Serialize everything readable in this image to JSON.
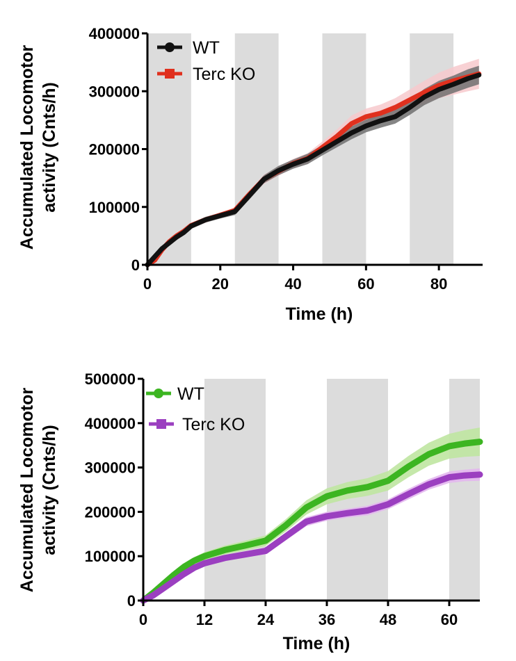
{
  "chart_data": [
    {
      "type": "line",
      "title": "",
      "xlabel": "Time (h)",
      "ylabel_line1": "Accumulated Locomotor",
      "ylabel_line2": "activity (Cnts/h)",
      "xlim": [
        0,
        92
      ],
      "ylim": [
        0,
        400000
      ],
      "xticks": [
        0,
        20,
        40,
        60,
        80
      ],
      "yticks": [
        0,
        100000,
        200000,
        300000,
        400000
      ],
      "dark_bands": [
        [
          0,
          12
        ],
        [
          24,
          36
        ],
        [
          48,
          60
        ],
        [
          72,
          84
        ]
      ],
      "band_color": "#dcdcdc",
      "series": [
        {
          "name": "Terc KO",
          "color": "#e0301e",
          "band_color": "#f7c9cc",
          "marker": "square",
          "x": [
            0,
            2,
            4,
            6,
            8,
            10,
            12,
            16,
            20,
            24,
            28,
            32,
            36,
            40,
            44,
            48,
            52,
            56,
            60,
            64,
            68,
            72,
            76,
            80,
            84,
            88,
            91
          ],
          "y": [
            0,
            8000,
            26000,
            40000,
            50000,
            58000,
            68000,
            78000,
            86000,
            94000,
            122000,
            148000,
            162000,
            175000,
            184000,
            203000,
            222000,
            244000,
            256000,
            262000,
            272000,
            285000,
            298000,
            310000,
            318000,
            325000,
            330000
          ],
          "err": [
            2000,
            3000,
            4000,
            4000,
            4000,
            4000,
            4000,
            4000,
            4000,
            5000,
            6000,
            8000,
            8000,
            8000,
            9000,
            10000,
            12000,
            14000,
            14000,
            15000,
            16000,
            18000,
            20000,
            22000,
            24000,
            25000,
            26000
          ]
        },
        {
          "name": "WT",
          "color": "#111111",
          "band_color": "#707070",
          "marker": "circle",
          "x": [
            0,
            2,
            4,
            6,
            8,
            10,
            12,
            16,
            20,
            24,
            28,
            32,
            36,
            40,
            44,
            48,
            52,
            56,
            60,
            64,
            68,
            72,
            76,
            80,
            84,
            88,
            91
          ],
          "y": [
            0,
            14000,
            28000,
            38000,
            48000,
            56000,
            67000,
            78000,
            85000,
            92000,
            120000,
            148000,
            163000,
            174000,
            183000,
            198000,
            213000,
            228000,
            240000,
            249000,
            256000,
            272000,
            290000,
            303000,
            312000,
            322000,
            328000
          ],
          "err": [
            2000,
            3000,
            4000,
            4000,
            5000,
            5000,
            5000,
            5000,
            5000,
            6000,
            7000,
            7000,
            8000,
            8000,
            9000,
            9000,
            10000,
            11000,
            11000,
            12000,
            12000,
            13000,
            14000,
            15000,
            15000,
            16000,
            16000
          ]
        }
      ],
      "legend": {
        "position": "top-left",
        "entries": [
          "WT",
          "Terc KO"
        ]
      }
    },
    {
      "type": "line",
      "title": "",
      "xlabel": "Time (h)",
      "ylabel_line1": "Accumulated Locomotor",
      "ylabel_line2": "activity (Cnts/h)",
      "xlim": [
        0,
        66
      ],
      "ylim": [
        0,
        500000
      ],
      "xticks": [
        0,
        12,
        24,
        36,
        48,
        60
      ],
      "yticks": [
        0,
        100000,
        200000,
        300000,
        400000,
        500000
      ],
      "dark_bands": [
        [
          12,
          24
        ],
        [
          36,
          48
        ],
        [
          60,
          66
        ]
      ],
      "band_color": "#dcdcdc",
      "series": [
        {
          "name": "WT",
          "color": "#3cb521",
          "band_color": "#bfe6a1",
          "marker": "circle",
          "x": [
            0,
            2,
            4,
            6,
            8,
            10,
            12,
            16,
            20,
            24,
            28,
            32,
            36,
            40,
            44,
            48,
            52,
            56,
            60,
            63,
            66
          ],
          "y": [
            0,
            18000,
            38000,
            58000,
            76000,
            90000,
            100000,
            114000,
            124000,
            135000,
            170000,
            210000,
            235000,
            248000,
            256000,
            270000,
            302000,
            330000,
            348000,
            354000,
            358000
          ],
          "err": [
            2000,
            4000,
            5000,
            6000,
            7000,
            8000,
            9000,
            10000,
            11000,
            12000,
            14000,
            16000,
            18000,
            19000,
            20000,
            22000,
            24000,
            26000,
            28000,
            30000,
            32000
          ]
        },
        {
          "name": "Terc KO",
          "color": "#9b3fc0",
          "band_color": "#e3b7ee",
          "marker": "square",
          "x": [
            0,
            2,
            4,
            6,
            8,
            10,
            12,
            16,
            20,
            24,
            28,
            32,
            36,
            40,
            44,
            48,
            52,
            56,
            60,
            63,
            66
          ],
          "y": [
            0,
            12000,
            28000,
            44000,
            60000,
            74000,
            84000,
            96000,
            104000,
            112000,
            145000,
            178000,
            190000,
            197000,
            203000,
            217000,
            240000,
            262000,
            278000,
            282000,
            284000
          ],
          "err": [
            2000,
            3000,
            4000,
            5000,
            5000,
            6000,
            6000,
            7000,
            7000,
            8000,
            9000,
            10000,
            10000,
            10000,
            11000,
            11000,
            12000,
            12000,
            13000,
            13000,
            14000
          ]
        }
      ],
      "legend": {
        "position": "top-left",
        "entries": [
          "WT",
          "Terc KO"
        ]
      }
    }
  ]
}
